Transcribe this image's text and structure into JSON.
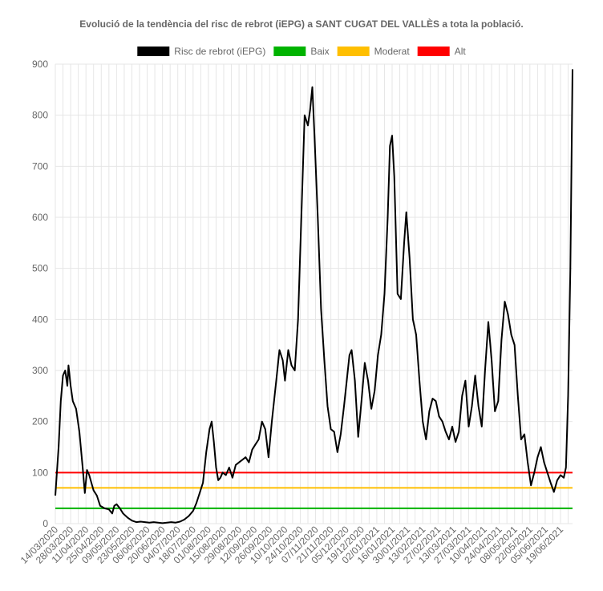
{
  "chart_data": {
    "type": "line",
    "title": "Evolució de la tendència del risc de rebrot (iEPG) a SANT CUGAT DEL VALLÈS a tota la població.",
    "xlabel": "",
    "ylabel": "",
    "ylim": [
      0,
      900
    ],
    "yticks": [
      0,
      100,
      200,
      300,
      400,
      500,
      600,
      700,
      800,
      900
    ],
    "grid": true,
    "legend_position": "top",
    "x_tick_labels": [
      "14/03/2020",
      "28/03/2020",
      "11/04/2020",
      "25/04/2020",
      "09/05/2020",
      "23/05/2020",
      "06/06/2020",
      "20/06/2020",
      "04/07/2020",
      "18/07/2020",
      "01/08/2020",
      "15/08/2020",
      "29/08/2020",
      "12/09/2020",
      "26/09/2020",
      "10/10/2020",
      "24/10/2020",
      "07/11/2020",
      "21/11/2020",
      "05/12/2020",
      "19/12/2020",
      "02/01/2021",
      "16/01/2021",
      "30/01/2021",
      "13/02/2021",
      "27/02/2021",
      "13/03/2021",
      "27/03/2021",
      "10/04/2021",
      "24/04/2021",
      "08/05/2021",
      "22/05/2021",
      "05/06/2021",
      "19/06/2021"
    ],
    "x_start": "14/03/2020",
    "x_end": "30/06/2021",
    "series": [
      {
        "name": "Risc de rebrot (iEPG)",
        "color": "#000000",
        "points": [
          [
            "14/03/2020",
            55
          ],
          [
            "17/03/2020",
            150
          ],
          [
            "19/03/2020",
            240
          ],
          [
            "21/03/2020",
            290
          ],
          [
            "23/03/2020",
            300
          ],
          [
            "25/03/2020",
            270
          ],
          [
            "26/03/2020",
            310
          ],
          [
            "28/03/2020",
            270
          ],
          [
            "30/03/2020",
            240
          ],
          [
            "02/04/2020",
            225
          ],
          [
            "05/04/2020",
            180
          ],
          [
            "08/04/2020",
            110
          ],
          [
            "10/04/2020",
            60
          ],
          [
            "12/04/2020",
            105
          ],
          [
            "14/04/2020",
            95
          ],
          [
            "16/04/2020",
            80
          ],
          [
            "18/04/2020",
            65
          ],
          [
            "21/04/2020",
            55
          ],
          [
            "24/04/2020",
            35
          ],
          [
            "28/04/2020",
            30
          ],
          [
            "02/05/2020",
            28
          ],
          [
            "05/05/2020",
            20
          ],
          [
            "07/05/2020",
            35
          ],
          [
            "09/05/2020",
            38
          ],
          [
            "12/05/2020",
            30
          ],
          [
            "15/05/2020",
            20
          ],
          [
            "19/05/2020",
            12
          ],
          [
            "23/05/2020",
            6
          ],
          [
            "27/05/2020",
            3
          ],
          [
            "31/05/2020",
            4
          ],
          [
            "04/06/2020",
            3
          ],
          [
            "08/06/2020",
            2
          ],
          [
            "12/06/2020",
            3
          ],
          [
            "16/06/2020",
            2
          ],
          [
            "20/06/2020",
            1
          ],
          [
            "24/06/2020",
            2
          ],
          [
            "28/06/2020",
            3
          ],
          [
            "02/07/2020",
            2
          ],
          [
            "06/07/2020",
            4
          ],
          [
            "10/07/2020",
            8
          ],
          [
            "14/07/2020",
            15
          ],
          [
            "18/07/2020",
            25
          ],
          [
            "21/07/2020",
            40
          ],
          [
            "24/07/2020",
            60
          ],
          [
            "27/07/2020",
            80
          ],
          [
            "30/07/2020",
            140
          ],
          [
            "02/08/2020",
            185
          ],
          [
            "04/08/2020",
            200
          ],
          [
            "06/08/2020",
            160
          ],
          [
            "08/08/2020",
            110
          ],
          [
            "10/08/2020",
            85
          ],
          [
            "12/08/2020",
            90
          ],
          [
            "14/08/2020",
            100
          ],
          [
            "17/08/2020",
            95
          ],
          [
            "20/08/2020",
            110
          ],
          [
            "23/08/2020",
            90
          ],
          [
            "26/08/2020",
            115
          ],
          [
            "29/08/2020",
            120
          ],
          [
            "01/09/2020",
            125
          ],
          [
            "04/09/2020",
            130
          ],
          [
            "07/09/2020",
            120
          ],
          [
            "10/09/2020",
            145
          ],
          [
            "13/09/2020",
            155
          ],
          [
            "16/09/2020",
            165
          ],
          [
            "19/09/2020",
            200
          ],
          [
            "22/09/2020",
            185
          ],
          [
            "25/09/2020",
            130
          ],
          [
            "28/09/2020",
            200
          ],
          [
            "02/10/2020",
            280
          ],
          [
            "05/10/2020",
            340
          ],
          [
            "08/10/2020",
            320
          ],
          [
            "10/10/2020",
            280
          ],
          [
            "13/10/2020",
            340
          ],
          [
            "16/10/2020",
            310
          ],
          [
            "19/10/2020",
            300
          ],
          [
            "22/10/2020",
            400
          ],
          [
            "25/10/2020",
            600
          ],
          [
            "28/10/2020",
            800
          ],
          [
            "31/10/2020",
            780
          ],
          [
            "02/11/2020",
            810
          ],
          [
            "04/11/2020",
            855
          ],
          [
            "06/11/2020",
            760
          ],
          [
            "09/11/2020",
            600
          ],
          [
            "12/11/2020",
            420
          ],
          [
            "15/11/2020",
            320
          ],
          [
            "18/11/2020",
            230
          ],
          [
            "21/11/2020",
            185
          ],
          [
            "24/11/2020",
            180
          ],
          [
            "27/11/2020",
            140
          ],
          [
            "30/11/2020",
            175
          ],
          [
            "03/12/2020",
            230
          ],
          [
            "06/12/2020",
            290
          ],
          [
            "08/12/2020",
            330
          ],
          [
            "10/12/2020",
            340
          ],
          [
            "13/12/2020",
            280
          ],
          [
            "16/12/2020",
            170
          ],
          [
            "19/12/2020",
            240
          ],
          [
            "22/12/2020",
            315
          ],
          [
            "25/12/2020",
            280
          ],
          [
            "28/12/2020",
            225
          ],
          [
            "31/12/2020",
            260
          ],
          [
            "03/01/2021",
            330
          ],
          [
            "06/01/2021",
            370
          ],
          [
            "09/01/2021",
            450
          ],
          [
            "12/01/2021",
            600
          ],
          [
            "14/01/2021",
            740
          ],
          [
            "16/01/2021",
            760
          ],
          [
            "18/01/2021",
            680
          ],
          [
            "21/01/2021",
            450
          ],
          [
            "24/01/2021",
            440
          ],
          [
            "27/01/2021",
            550
          ],
          [
            "29/01/2021",
            610
          ],
          [
            "01/02/2021",
            520
          ],
          [
            "04/02/2021",
            400
          ],
          [
            "07/02/2021",
            370
          ],
          [
            "10/02/2021",
            280
          ],
          [
            "13/02/2021",
            200
          ],
          [
            "16/02/2021",
            165
          ],
          [
            "19/02/2021",
            220
          ],
          [
            "22/02/2021",
            245
          ],
          [
            "25/02/2021",
            240
          ],
          [
            "28/02/2021",
            210
          ],
          [
            "03/03/2021",
            200
          ],
          [
            "06/03/2021",
            180
          ],
          [
            "09/03/2021",
            165
          ],
          [
            "12/03/2021",
            190
          ],
          [
            "15/03/2021",
            160
          ],
          [
            "18/03/2021",
            180
          ],
          [
            "21/03/2021",
            250
          ],
          [
            "24/03/2021",
            280
          ],
          [
            "27/03/2021",
            190
          ],
          [
            "30/03/2021",
            230
          ],
          [
            "02/04/2021",
            290
          ],
          [
            "05/04/2021",
            230
          ],
          [
            "08/04/2021",
            190
          ],
          [
            "11/04/2021",
            300
          ],
          [
            "14/04/2021",
            395
          ],
          [
            "17/04/2021",
            320
          ],
          [
            "20/04/2021",
            220
          ],
          [
            "23/04/2021",
            240
          ],
          [
            "26/04/2021",
            360
          ],
          [
            "29/04/2021",
            435
          ],
          [
            "02/05/2021",
            410
          ],
          [
            "05/05/2021",
            370
          ],
          [
            "08/05/2021",
            350
          ],
          [
            "11/05/2021",
            250
          ],
          [
            "14/05/2021",
            165
          ],
          [
            "17/05/2021",
            175
          ],
          [
            "20/05/2021",
            120
          ],
          [
            "23/05/2021",
            75
          ],
          [
            "26/05/2021",
            100
          ],
          [
            "29/05/2021",
            130
          ],
          [
            "01/06/2021",
            150
          ],
          [
            "04/06/2021",
            120
          ],
          [
            "07/06/2021",
            100
          ],
          [
            "10/06/2021",
            80
          ],
          [
            "13/06/2021",
            62
          ],
          [
            "16/06/2021",
            85
          ],
          [
            "19/06/2021",
            95
          ],
          [
            "22/06/2021",
            90
          ],
          [
            "24/06/2021",
            110
          ],
          [
            "26/06/2021",
            250
          ],
          [
            "28/06/2021",
            500
          ],
          [
            "30/06/2021",
            890
          ]
        ]
      },
      {
        "name": "Baix",
        "color": "#00b300",
        "value": 30
      },
      {
        "name": "Moderat",
        "color": "#ffbf00",
        "value": 70
      },
      {
        "name": "Alt",
        "color": "#ff0000",
        "value": 100
      }
    ]
  }
}
